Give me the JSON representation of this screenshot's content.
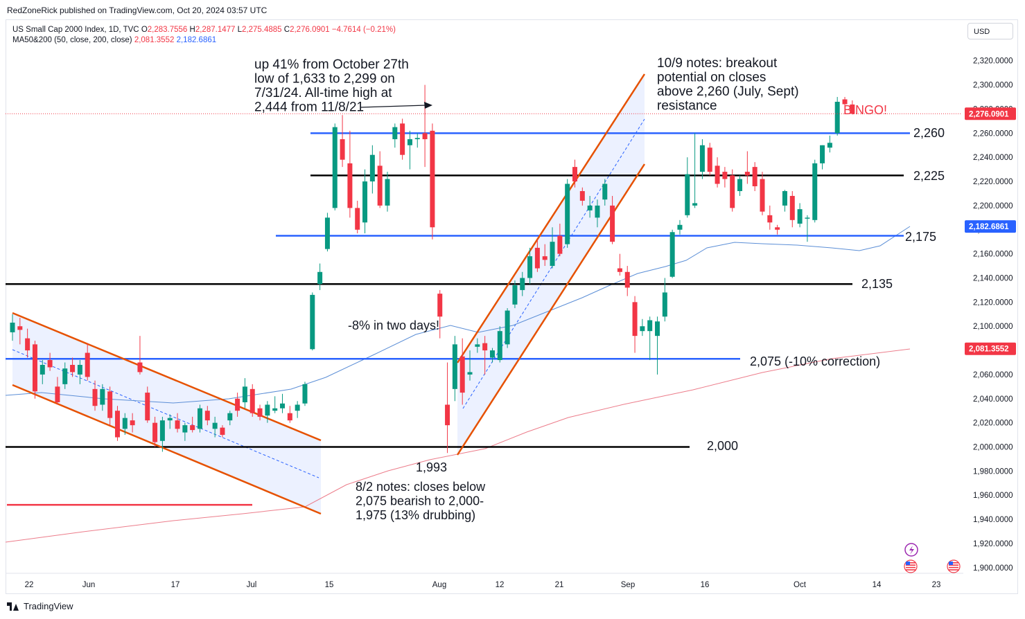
{
  "header": {
    "byline": "RedZoneRick published on TradingView.com, Oct 20, 2024 03:57 UTC"
  },
  "legend": {
    "symbol": "US Small Cap 2000 Index, 1D, TVC",
    "o_label": "O",
    "o_value": "2,283.7556",
    "h_label": "H",
    "h_value": "2,287.1477",
    "l_label": "L",
    "l_value": "2,275.4885",
    "c_label": "C",
    "c_value": "2,276.0901",
    "change": "−4.7614 (−0.21%)",
    "ma_label": "MA50&200 (50, close, 200, close)",
    "ma50_value": "2,081.3552",
    "ma200_value": "2,182.6861"
  },
  "currency": "USD",
  "footer": {
    "brand": "TradingView"
  },
  "colors": {
    "up": "#089981",
    "down": "#f23645",
    "blue_line": "#2962ff",
    "black_line": "#000000",
    "channel": "#e65100",
    "channel_fill": "#2962ff",
    "ma50": "#5b8ed6",
    "ma200": "#ec7c8a"
  },
  "chart_data": {
    "type": "candlestick",
    "ylim": [
      1890,
      2340
    ],
    "y_ticks": [
      "2,320.0000",
      "2,300.0000",
      "2,280.0000",
      "2,260.0000",
      "2,240.0000",
      "2,220.0000",
      "2,200.0000",
      "2,180.0000",
      "2,160.0000",
      "2,140.0000",
      "2,120.0000",
      "2,100.0000",
      "2,080.0000",
      "2,060.0000",
      "2,040.0000",
      "2,020.0000",
      "2,000.0000",
      "1,980.0000",
      "1,960.0000",
      "1,940.0000",
      "1,920.0000",
      "1,900.0000"
    ],
    "x_ticks": [
      "22",
      "Jun",
      "17",
      "Jul",
      "15",
      "Aug",
      "12",
      "21",
      "Sep",
      "16",
      "Oct",
      "14",
      "23"
    ],
    "price_badges": [
      {
        "value": "2,276.0901",
        "level": 2276.09,
        "color": "#f23645"
      },
      {
        "value": "2,182.6861",
        "level": 2182.69,
        "color": "#2962ff"
      },
      {
        "value": "2,081.3552",
        "level": 2081.36,
        "color": "#f23645"
      }
    ],
    "levels": [
      {
        "label": "2,260",
        "value": 2260,
        "color": "blue"
      },
      {
        "label": "2,225",
        "value": 2225,
        "color": "black"
      },
      {
        "label": "2,175",
        "value": 2175,
        "color": "blue"
      },
      {
        "label": "2,135",
        "value": 2135,
        "color": "black"
      },
      {
        "label": "2,075 (-10% correction)",
        "value": 2073,
        "color": "blue"
      },
      {
        "label": "2,000",
        "value": 2000,
        "color": "black"
      },
      {
        "label": "",
        "value": 1952,
        "color": "red"
      }
    ],
    "annotations": [
      {
        "lines": [
          "up 41% from October 27th",
          "low of 1,633 to 2,299 on",
          "7/31/24. All-time high at",
          "2,444 from 11/8/21"
        ]
      },
      {
        "lines": [
          "10/9 notes: breakout",
          "potential on closes",
          "above 2,260 (July, Sept)",
          "resistance"
        ]
      },
      {
        "lines": [
          "BINGO!"
        ]
      },
      {
        "lines": [
          "-8% in two days!"
        ]
      },
      {
        "lines": [
          "1,993"
        ]
      },
      {
        "lines": [
          "8/2 notes: closes below",
          "2,075 bearish to 2,000-",
          "1,975 (13% drubbing)"
        ]
      }
    ],
    "candles": [
      {
        "o": 2095,
        "h": 2110,
        "l": 2088,
        "c": 2103
      },
      {
        "o": 2100,
        "h": 2107,
        "l": 2085,
        "c": 2097
      },
      {
        "o": 2090,
        "h": 2098,
        "l": 2074,
        "c": 2080
      },
      {
        "o": 2085,
        "h": 2088,
        "l": 2040,
        "c": 2046
      },
      {
        "o": 2060,
        "h": 2072,
        "l": 2052,
        "c": 2068
      },
      {
        "o": 2072,
        "h": 2078,
        "l": 2063,
        "c": 2066
      },
      {
        "o": 2050,
        "h": 2058,
        "l": 2035,
        "c": 2037
      },
      {
        "o": 2052,
        "h": 2070,
        "l": 2048,
        "c": 2065
      },
      {
        "o": 2068,
        "h": 2074,
        "l": 2058,
        "c": 2062
      },
      {
        "o": 2060,
        "h": 2072,
        "l": 2052,
        "c": 2068
      },
      {
        "o": 2078,
        "h": 2086,
        "l": 2055,
        "c": 2058
      },
      {
        "o": 2048,
        "h": 2055,
        "l": 2030,
        "c": 2034
      },
      {
        "o": 2035,
        "h": 2052,
        "l": 2030,
        "c": 2048
      },
      {
        "o": 2046,
        "h": 2050,
        "l": 2018,
        "c": 2024
      },
      {
        "o": 2030,
        "h": 2034,
        "l": 2005,
        "c": 2008
      },
      {
        "o": 2015,
        "h": 2028,
        "l": 2010,
        "c": 2024
      },
      {
        "o": 2022,
        "h": 2028,
        "l": 2012,
        "c": 2018
      },
      {
        "o": 2070,
        "h": 2092,
        "l": 2060,
        "c": 2062
      },
      {
        "o": 2045,
        "h": 2050,
        "l": 2020,
        "c": 2022
      },
      {
        "o": 2020,
        "h": 2025,
        "l": 2000,
        "c": 2004
      },
      {
        "o": 2005,
        "h": 2025,
        "l": 1996,
        "c": 2022
      },
      {
        "o": 2022,
        "h": 2027,
        "l": 2015,
        "c": 2024
      },
      {
        "o": 2022,
        "h": 2028,
        "l": 2012,
        "c": 2015
      },
      {
        "o": 2012,
        "h": 2020,
        "l": 2005,
        "c": 2018
      },
      {
        "o": 2018,
        "h": 2025,
        "l": 2012,
        "c": 2014
      },
      {
        "o": 2015,
        "h": 2035,
        "l": 2012,
        "c": 2032
      },
      {
        "o": 2030,
        "h": 2034,
        "l": 2018,
        "c": 2022
      },
      {
        "o": 2015,
        "h": 2025,
        "l": 2008,
        "c": 2020
      },
      {
        "o": 2016,
        "h": 2018,
        "l": 2008,
        "c": 2010
      },
      {
        "o": 2022,
        "h": 2030,
        "l": 2018,
        "c": 2028
      },
      {
        "o": 2040,
        "h": 2045,
        "l": 2025,
        "c": 2030
      },
      {
        "o": 2037,
        "h": 2057,
        "l": 2032,
        "c": 2050
      },
      {
        "o": 2048,
        "h": 2052,
        "l": 2025,
        "c": 2028
      },
      {
        "o": 2032,
        "h": 2035,
        "l": 2022,
        "c": 2025
      },
      {
        "o": 2026,
        "h": 2038,
        "l": 2020,
        "c": 2035
      },
      {
        "o": 2030,
        "h": 2042,
        "l": 2028,
        "c": 2032
      },
      {
        "o": 2032,
        "h": 2044,
        "l": 2028,
        "c": 2036
      },
      {
        "o": 2028,
        "h": 2034,
        "l": 2020,
        "c": 2022
      },
      {
        "o": 2030,
        "h": 2038,
        "l": 2024,
        "c": 2035
      },
      {
        "o": 2036,
        "h": 2054,
        "l": 2034,
        "c": 2052
      },
      {
        "o": 2081,
        "h": 2128,
        "l": 2080,
        "c": 2126
      },
      {
        "o": 2135,
        "h": 2152,
        "l": 2130,
        "c": 2145
      },
      {
        "o": 2164,
        "h": 2194,
        "l": 2162,
        "c": 2190
      },
      {
        "o": 2198,
        "h": 2268,
        "l": 2196,
        "c": 2265
      },
      {
        "o": 2255,
        "h": 2275,
        "l": 2232,
        "c": 2238
      },
      {
        "o": 2235,
        "h": 2262,
        "l": 2190,
        "c": 2198
      },
      {
        "o": 2198,
        "h": 2204,
        "l": 2177,
        "c": 2180
      },
      {
        "o": 2186,
        "h": 2230,
        "l": 2177,
        "c": 2220
      },
      {
        "o": 2220,
        "h": 2250,
        "l": 2210,
        "c": 2242
      },
      {
        "o": 2233,
        "h": 2245,
        "l": 2198,
        "c": 2200
      },
      {
        "o": 2200,
        "h": 2228,
        "l": 2195,
        "c": 2222
      },
      {
        "o": 2255,
        "h": 2268,
        "l": 2248,
        "c": 2265
      },
      {
        "o": 2268,
        "h": 2272,
        "l": 2238,
        "c": 2242
      },
      {
        "o": 2250,
        "h": 2262,
        "l": 2230,
        "c": 2255
      },
      {
        "o": 2255,
        "h": 2260,
        "l": 2248,
        "c": 2256
      },
      {
        "o": 2260,
        "h": 2300,
        "l": 2232,
        "c": 2255
      },
      {
        "o": 2262,
        "h": 2268,
        "l": 2172,
        "c": 2182
      },
      {
        "o": 2127,
        "h": 2130,
        "l": 2090,
        "c": 2108
      },
      {
        "o": 2035,
        "h": 2070,
        "l": 1995,
        "c": 2018
      },
      {
        "o": 2048,
        "h": 2092,
        "l": 2038,
        "c": 2085
      },
      {
        "o": 2075,
        "h": 2090,
        "l": 2035,
        "c": 2045
      },
      {
        "o": 2060,
        "h": 2080,
        "l": 2055,
        "c": 2062
      },
      {
        "o": 2083,
        "h": 2090,
        "l": 2078,
        "c": 2085
      },
      {
        "o": 2086,
        "h": 2092,
        "l": 2060,
        "c": 2080
      },
      {
        "o": 2074,
        "h": 2082,
        "l": 2070,
        "c": 2080
      },
      {
        "o": 2072,
        "h": 2100,
        "l": 2070,
        "c": 2096
      },
      {
        "o": 2085,
        "h": 2115,
        "l": 2082,
        "c": 2113
      },
      {
        "o": 2118,
        "h": 2138,
        "l": 2115,
        "c": 2134
      },
      {
        "o": 2130,
        "h": 2145,
        "l": 2125,
        "c": 2140
      },
      {
        "o": 2140,
        "h": 2165,
        "l": 2135,
        "c": 2158
      },
      {
        "o": 2165,
        "h": 2172,
        "l": 2145,
        "c": 2148
      },
      {
        "o": 2158,
        "h": 2168,
        "l": 2150,
        "c": 2155
      },
      {
        "o": 2150,
        "h": 2182,
        "l": 2148,
        "c": 2170
      },
      {
        "o": 2175,
        "h": 2185,
        "l": 2158,
        "c": 2160
      },
      {
        "o": 2168,
        "h": 2222,
        "l": 2165,
        "c": 2218
      },
      {
        "o": 2232,
        "h": 2238,
        "l": 2215,
        "c": 2220
      },
      {
        "o": 2212,
        "h": 2215,
        "l": 2200,
        "c": 2204
      },
      {
        "o": 2196,
        "h": 2208,
        "l": 2190,
        "c": 2200
      },
      {
        "o": 2190,
        "h": 2205,
        "l": 2182,
        "c": 2200
      },
      {
        "o": 2205,
        "h": 2222,
        "l": 2200,
        "c": 2218
      },
      {
        "o": 2200,
        "h": 2208,
        "l": 2168,
        "c": 2170
      },
      {
        "o": 2148,
        "h": 2160,
        "l": 2142,
        "c": 2145
      },
      {
        "o": 2145,
        "h": 2150,
        "l": 2125,
        "c": 2132
      },
      {
        "o": 2120,
        "h": 2125,
        "l": 2078,
        "c": 2092
      },
      {
        "o": 2096,
        "h": 2106,
        "l": 2092,
        "c": 2100
      },
      {
        "o": 2096,
        "h": 2108,
        "l": 2072,
        "c": 2105
      },
      {
        "o": 2092,
        "h": 2108,
        "l": 2060,
        "c": 2104
      },
      {
        "o": 2108,
        "h": 2140,
        "l": 2104,
        "c": 2128
      },
      {
        "o": 2141,
        "h": 2180,
        "l": 2140,
        "c": 2178
      },
      {
        "o": 2180,
        "h": 2188,
        "l": 2176,
        "c": 2184
      },
      {
        "o": 2192,
        "h": 2240,
        "l": 2190,
        "c": 2226
      },
      {
        "o": 2200,
        "h": 2260,
        "l": 2198,
        "c": 2202
      },
      {
        "o": 2228,
        "h": 2255,
        "l": 2222,
        "c": 2250
      },
      {
        "o": 2248,
        "h": 2252,
        "l": 2225,
        "c": 2228
      },
      {
        "o": 2233,
        "h": 2240,
        "l": 2215,
        "c": 2218
      },
      {
        "o": 2228,
        "h": 2232,
        "l": 2215,
        "c": 2222
      },
      {
        "o": 2225,
        "h": 2230,
        "l": 2195,
        "c": 2198
      },
      {
        "o": 2212,
        "h": 2225,
        "l": 2208,
        "c": 2222
      },
      {
        "o": 2228,
        "h": 2245,
        "l": 2218,
        "c": 2225
      },
      {
        "o": 2232,
        "h": 2236,
        "l": 2212,
        "c": 2216
      },
      {
        "o": 2222,
        "h": 2228,
        "l": 2192,
        "c": 2195
      },
      {
        "o": 2192,
        "h": 2200,
        "l": 2180,
        "c": 2186
      },
      {
        "o": 2182,
        "h": 2184,
        "l": 2176,
        "c": 2180
      },
      {
        "o": 2200,
        "h": 2213,
        "l": 2195,
        "c": 2212
      },
      {
        "o": 2208,
        "h": 2212,
        "l": 2182,
        "c": 2188
      },
      {
        "o": 2185,
        "h": 2202,
        "l": 2182,
        "c": 2197
      },
      {
        "o": 2190,
        "h": 2192,
        "l": 2170,
        "c": 2190
      },
      {
        "o": 2188,
        "h": 2238,
        "l": 2186,
        "c": 2235
      },
      {
        "o": 2235,
        "h": 2250,
        "l": 2230,
        "c": 2250
      },
      {
        "o": 2248,
        "h": 2258,
        "l": 2244,
        "c": 2252
      },
      {
        "o": 2260,
        "h": 2290,
        "l": 2258,
        "c": 2286
      },
      {
        "o": 2288,
        "h": 2290,
        "l": 2280,
        "c": 2284
      },
      {
        "o": 2283.76,
        "h": 2287.15,
        "l": 2275.49,
        "c": 2276.09
      }
    ]
  }
}
